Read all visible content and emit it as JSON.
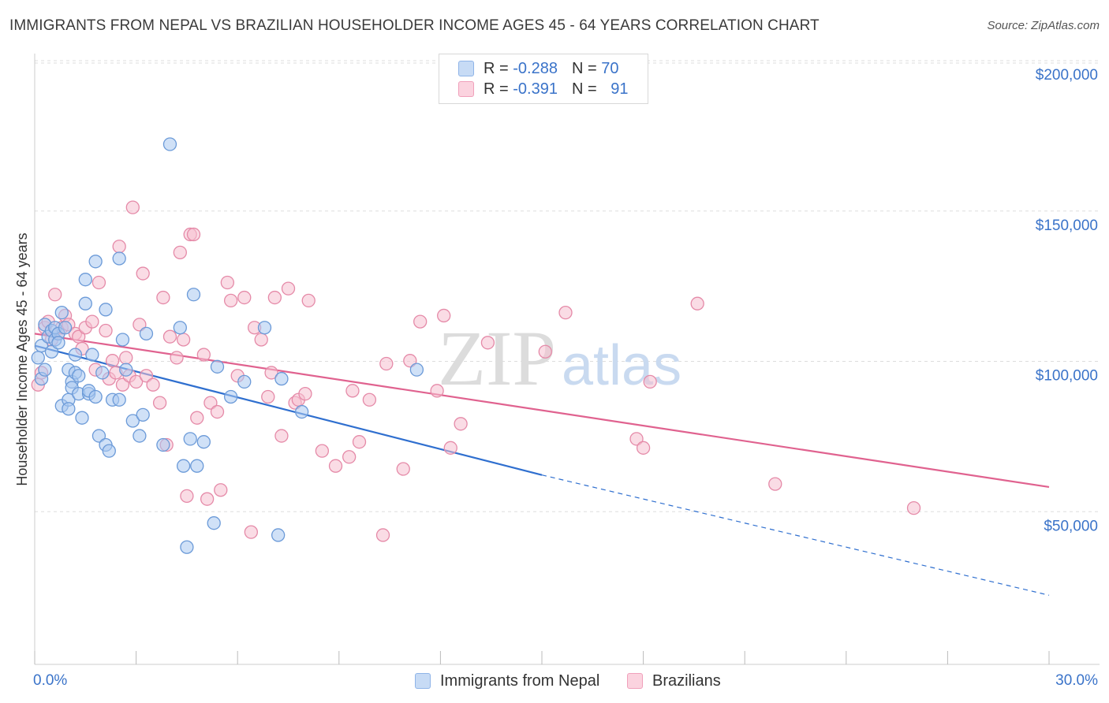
{
  "header": {
    "title": "IMMIGRANTS FROM NEPAL VS BRAZILIAN HOUSEHOLDER INCOME AGES 45 - 64 YEARS CORRELATION CHART",
    "source": "Source: ZipAtlas.com"
  },
  "watermark": {
    "zip": "ZIP",
    "atlas": "atlas"
  },
  "legend": {
    "r_label": "R =",
    "n_label": "N =",
    "rows": [
      {
        "r": "-0.288",
        "n": "70",
        "color": "#8fb4e8"
      },
      {
        "r": "-0.391",
        "n": "91",
        "color": "#f0a0bb"
      }
    ]
  },
  "colors": {
    "blue_fill": "#aac8f0",
    "blue_stroke": "#6b9ad8",
    "blue_line": "#2f6fcf",
    "pink_fill": "#f6bfd0",
    "pink_stroke": "#e58aa8",
    "pink_line": "#e0628f",
    "axis_label": "#3a73c9",
    "grid": "#dddddd"
  },
  "chart_data": {
    "type": "scatter",
    "title": "IMMIGRANTS FROM NEPAL VS BRAZILIAN HOUSEHOLDER INCOME AGES 45 - 64 YEARS CORRELATION CHART",
    "xlabel": "",
    "ylabel": "Householder Income Ages 45 - 64 years",
    "xlim": [
      0,
      30
    ],
    "ylim": [
      0,
      200000
    ],
    "x_tick_labels": [
      "0.0%",
      "30.0%"
    ],
    "y_ticks": [
      {
        "value": 200000,
        "label": "$200,000"
      },
      {
        "value": 150000,
        "label": "$150,000"
      },
      {
        "value": 100000,
        "label": "$100,000"
      },
      {
        "value": 50000,
        "label": "$50,000"
      }
    ],
    "grid": true,
    "legend_position": "top-center",
    "series": [
      {
        "name": "Immigrants from Nepal",
        "r": -0.288,
        "n": 70,
        "trend": {
          "x0": 0,
          "y0": 106000,
          "x1": 15,
          "y1": 63000,
          "dashed_to_x": 30,
          "dashed_to_y": 23000
        },
        "points": [
          [
            0.1,
            102000
          ],
          [
            0.2,
            106000
          ],
          [
            0.2,
            95000
          ],
          [
            0.3,
            98000
          ],
          [
            0.3,
            113000
          ],
          [
            0.4,
            109000
          ],
          [
            0.5,
            111000
          ],
          [
            0.5,
            104000
          ],
          [
            0.6,
            108000
          ],
          [
            0.6,
            112000
          ],
          [
            0.7,
            110000
          ],
          [
            0.7,
            107000
          ],
          [
            0.8,
            117000
          ],
          [
            0.8,
            86000
          ],
          [
            0.9,
            112000
          ],
          [
            1.0,
            88000
          ],
          [
            1.0,
            85000
          ],
          [
            1.0,
            98000
          ],
          [
            1.1,
            94000
          ],
          [
            1.1,
            92000
          ],
          [
            1.2,
            97000
          ],
          [
            1.2,
            103000
          ],
          [
            1.3,
            90000
          ],
          [
            1.3,
            96000
          ],
          [
            1.4,
            82000
          ],
          [
            1.5,
            128000
          ],
          [
            1.5,
            120000
          ],
          [
            1.6,
            90000
          ],
          [
            1.6,
            91000
          ],
          [
            1.7,
            103000
          ],
          [
            1.8,
            134000
          ],
          [
            1.8,
            89000
          ],
          [
            1.9,
            76000
          ],
          [
            2.0,
            97000
          ],
          [
            2.1,
            73000
          ],
          [
            2.1,
            118000
          ],
          [
            2.2,
            71000
          ],
          [
            2.3,
            88000
          ],
          [
            2.5,
            135000
          ],
          [
            2.5,
            88000
          ],
          [
            2.6,
            108000
          ],
          [
            2.7,
            98000
          ],
          [
            2.9,
            81000
          ],
          [
            3.1,
            76000
          ],
          [
            3.2,
            83000
          ],
          [
            3.3,
            110000
          ],
          [
            3.8,
            73000
          ],
          [
            4.0,
            173000
          ],
          [
            4.3,
            112000
          ],
          [
            4.4,
            66000
          ],
          [
            4.5,
            39000
          ],
          [
            4.6,
            75000
          ],
          [
            4.7,
            123000
          ],
          [
            4.8,
            66000
          ],
          [
            5.0,
            74000
          ],
          [
            5.3,
            47000
          ],
          [
            5.4,
            99000
          ],
          [
            5.8,
            89000
          ],
          [
            6.2,
            94000
          ],
          [
            6.8,
            112000
          ],
          [
            7.2,
            43000
          ],
          [
            7.3,
            95000
          ],
          [
            7.9,
            84000
          ],
          [
            11.3,
            98000
          ]
        ]
      },
      {
        "name": "Brazilians",
        "r": -0.391,
        "n": 91,
        "trend": {
          "x0": 0,
          "y0": 110000,
          "x1": 30,
          "y1": 59000
        },
        "points": [
          [
            0.1,
            93000
          ],
          [
            0.2,
            97000
          ],
          [
            0.3,
            112000
          ],
          [
            0.4,
            114000
          ],
          [
            0.5,
            108000
          ],
          [
            0.6,
            123000
          ],
          [
            0.7,
            110000
          ],
          [
            0.8,
            112000
          ],
          [
            0.9,
            116000
          ],
          [
            1.0,
            113000
          ],
          [
            1.2,
            110000
          ],
          [
            1.3,
            109000
          ],
          [
            1.4,
            105000
          ],
          [
            1.5,
            112000
          ],
          [
            1.7,
            114000
          ],
          [
            1.8,
            98000
          ],
          [
            1.9,
            127000
          ],
          [
            2.1,
            111000
          ],
          [
            2.2,
            95000
          ],
          [
            2.3,
            101000
          ],
          [
            2.4,
            97000
          ],
          [
            2.5,
            139000
          ],
          [
            2.6,
            93000
          ],
          [
            2.7,
            102000
          ],
          [
            2.8,
            96000
          ],
          [
            2.9,
            152000
          ],
          [
            3.0,
            94000
          ],
          [
            3.1,
            113000
          ],
          [
            3.2,
            130000
          ],
          [
            3.3,
            96000
          ],
          [
            3.5,
            93000
          ],
          [
            3.7,
            87000
          ],
          [
            3.8,
            122000
          ],
          [
            3.9,
            73000
          ],
          [
            4.0,
            109000
          ],
          [
            4.2,
            102000
          ],
          [
            4.3,
            137000
          ],
          [
            4.4,
            108000
          ],
          [
            4.5,
            56000
          ],
          [
            4.6,
            143000
          ],
          [
            4.7,
            143000
          ],
          [
            4.8,
            82000
          ],
          [
            5.0,
            103000
          ],
          [
            5.1,
            55000
          ],
          [
            5.2,
            87000
          ],
          [
            5.4,
            84000
          ],
          [
            5.5,
            58000
          ],
          [
            5.7,
            127000
          ],
          [
            5.8,
            121000
          ],
          [
            6.0,
            96000
          ],
          [
            6.2,
            122000
          ],
          [
            6.4,
            44000
          ],
          [
            6.5,
            112000
          ],
          [
            6.7,
            108000
          ],
          [
            6.9,
            89000
          ],
          [
            7.0,
            97000
          ],
          [
            7.1,
            122000
          ],
          [
            7.3,
            76000
          ],
          [
            7.5,
            125000
          ],
          [
            7.7,
            87000
          ],
          [
            7.8,
            88000
          ],
          [
            8.0,
            90000
          ],
          [
            8.1,
            121000
          ],
          [
            8.5,
            71000
          ],
          [
            8.9,
            66000
          ],
          [
            9.3,
            69000
          ],
          [
            9.4,
            91000
          ],
          [
            9.6,
            74000
          ],
          [
            9.9,
            88000
          ],
          [
            10.3,
            43000
          ],
          [
            10.4,
            100000
          ],
          [
            10.9,
            65000
          ],
          [
            11.1,
            101000
          ],
          [
            11.4,
            114000
          ],
          [
            11.9,
            91000
          ],
          [
            12.1,
            116000
          ],
          [
            12.3,
            72000
          ],
          [
            12.6,
            80000
          ],
          [
            13.4,
            107000
          ],
          [
            15.1,
            104000
          ],
          [
            15.7,
            117000
          ],
          [
            17.8,
            75000
          ],
          [
            18.0,
            72000
          ],
          [
            18.2,
            94000
          ],
          [
            19.6,
            120000
          ],
          [
            21.9,
            60000
          ],
          [
            26.0,
            52000
          ]
        ]
      }
    ]
  }
}
